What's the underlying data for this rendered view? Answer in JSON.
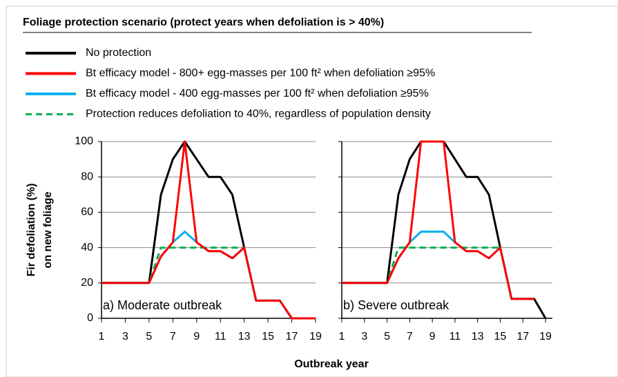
{
  "title": "Foliage protection scenario (protect years when defoliation is > 40%)",
  "xlabel": "Outbreak year",
  "ylabel": [
    "Fir defoliation (%)",
    "on new foliage"
  ],
  "chart_data": [
    {
      "type": "line",
      "annotation": "a) Moderate outbreak",
      "x": [
        1,
        2,
        3,
        4,
        5,
        6,
        7,
        8,
        9,
        10,
        11,
        12,
        13,
        14,
        15,
        16,
        17,
        18,
        19
      ],
      "xlim": [
        1,
        19
      ],
      "xticks": [
        1,
        3,
        5,
        7,
        9,
        11,
        13,
        15,
        17,
        19
      ],
      "ylim": [
        0,
        100
      ],
      "yticks": [
        0,
        20,
        40,
        60,
        80,
        100
      ],
      "grid": true,
      "series": [
        {
          "name": "No protection",
          "color": "#000000",
          "style": "solid",
          "values": [
            20,
            20,
            20,
            20,
            20,
            70,
            90,
            100,
            90,
            80,
            80,
            70,
            40,
            10,
            10,
            10,
            0,
            0,
            0
          ]
        },
        {
          "name": "Protection reduces defoliation to 40%, regardless of population density",
          "color": "#00b050",
          "style": "dashed",
          "values": [
            20,
            20,
            20,
            20,
            20,
            40,
            40,
            40,
            40,
            40,
            40,
            40,
            40,
            10,
            10,
            10,
            0,
            0,
            0
          ]
        },
        {
          "name": "Bt efficacy model - 400 egg-masses per 100 ft² when defoliation ≥95%",
          "color": "#00b0f0",
          "style": "solid",
          "values": [
            20,
            20,
            20,
            20,
            20,
            35,
            43,
            49,
            43,
            38,
            38,
            34,
            40,
            10,
            10,
            10,
            0,
            0,
            0
          ]
        },
        {
          "name": "Bt efficacy model - 800+ egg-masses per 100 ft² when defoliation ≥95%",
          "color": "#ff0000",
          "style": "solid",
          "values": [
            20,
            20,
            20,
            20,
            20,
            35,
            43,
            100,
            43,
            38,
            38,
            34,
            40,
            10,
            10,
            10,
            0,
            0,
            0
          ]
        }
      ]
    },
    {
      "type": "line",
      "annotation": "b) Severe outbreak",
      "x": [
        1,
        2,
        3,
        4,
        5,
        6,
        7,
        8,
        9,
        10,
        11,
        12,
        13,
        14,
        15,
        16,
        17,
        18,
        19
      ],
      "xlim": [
        1,
        19
      ],
      "xticks": [
        1,
        3,
        5,
        7,
        9,
        11,
        13,
        15,
        17,
        19
      ],
      "ylim": [
        0,
        100
      ],
      "yticks": [
        0,
        20,
        40,
        60,
        80,
        100
      ],
      "grid": true,
      "series": [
        {
          "color": "#000000",
          "style": "solid",
          "values": [
            20,
            20,
            20,
            20,
            20,
            70,
            90,
            100,
            100,
            100,
            90,
            80,
            80,
            70,
            40,
            11,
            11,
            11,
            0
          ]
        },
        {
          "color": "#00b050",
          "style": "dashed",
          "values": [
            20,
            20,
            20,
            20,
            20,
            40,
            40,
            40,
            40,
            40,
            40,
            40,
            40,
            40,
            40,
            11,
            11,
            11,
            null
          ]
        },
        {
          "color": "#00b0f0",
          "style": "solid",
          "values": [
            20,
            20,
            20,
            20,
            20,
            34,
            43,
            49,
            49,
            49,
            43,
            38,
            38,
            34,
            40,
            11,
            11,
            11,
            null
          ]
        },
        {
          "color": "#ff0000",
          "style": "solid",
          "values": [
            20,
            20,
            20,
            20,
            20,
            34,
            43,
            100,
            100,
            100,
            43,
            38,
            38,
            34,
            40,
            11,
            11,
            11,
            null
          ]
        }
      ]
    }
  ]
}
